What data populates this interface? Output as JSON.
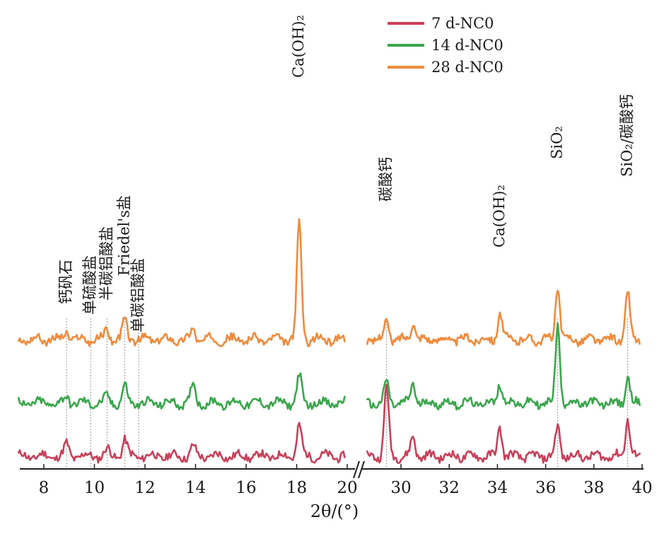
{
  "chart_data": {
    "type": "line",
    "title": "",
    "xlabel": "2θ/(°)",
    "ylabel": "",
    "xlim": [
      7,
      40
    ],
    "broken_axis": [
      20,
      28.6
    ],
    "x_ticks": [
      "8",
      "10",
      "12",
      "14",
      "16",
      "18",
      "20",
      "30",
      "32",
      "34",
      "36",
      "38",
      "40"
    ],
    "x_tick_values": [
      8,
      10,
      12,
      14,
      16,
      18,
      20,
      30,
      32,
      34,
      36,
      38,
      40
    ],
    "grid": false,
    "legend_position": "top-right",
    "series": [
      {
        "name": "7 d-NC0",
        "color": "#c8405a",
        "peaks": [
          [
            8.9,
            0.55
          ],
          [
            10.5,
            0.3
          ],
          [
            11.2,
            0.8
          ],
          [
            13.9,
            0.45
          ],
          [
            18.1,
            1.5
          ],
          [
            29.4,
            3.3
          ],
          [
            30.5,
            0.9
          ],
          [
            34.1,
            1.4
          ],
          [
            36.5,
            1.4
          ],
          [
            39.4,
            1.8
          ]
        ]
      },
      {
        "name": "14 d-NC0",
        "color": "#3aa64c",
        "peaks": [
          [
            8.9,
            0.3
          ],
          [
            10.5,
            0.3
          ],
          [
            11.2,
            0.8
          ],
          [
            13.9,
            0.9
          ],
          [
            18.1,
            1.3
          ],
          [
            29.4,
            1.0
          ],
          [
            30.5,
            1.0
          ],
          [
            34.1,
            1.0
          ],
          [
            36.5,
            3.7
          ],
          [
            39.4,
            1.2
          ]
        ]
      },
      {
        "name": "28 d-NC0",
        "color": "#f08a3c",
        "peaks": [
          [
            8.9,
            0.4
          ],
          [
            10.5,
            0.5
          ],
          [
            11.2,
            0.9
          ],
          [
            13.9,
            0.5
          ],
          [
            18.1,
            5.5
          ],
          [
            29.4,
            0.9
          ],
          [
            30.5,
            0.9
          ],
          [
            34.1,
            1.3
          ],
          [
            36.5,
            2.5
          ],
          [
            39.4,
            2.3
          ]
        ]
      }
    ],
    "guide_lines": [
      8.9,
      9.85,
      10.5,
      11.2,
      11.75,
      29.4,
      36.5,
      39.4
    ],
    "annotations": [
      {
        "text": "钙矾石",
        "x": 8.9
      },
      {
        "text": "单硫酸盐",
        "x": 9.85
      },
      {
        "text": "半碳铝酸盐",
        "x": 10.5
      },
      {
        "text": "Friedel's盐",
        "x": 11.2
      },
      {
        "text": "单碳铝酸盐",
        "x": 11.75
      },
      {
        "text": "Ca(OH)₂",
        "x": 18.1
      },
      {
        "text": "碳酸钙",
        "x": 29.4
      },
      {
        "text": "Ca(OH)₂",
        "x": 34.1
      },
      {
        "text": "SiO₂",
        "x": 36.5
      },
      {
        "text": "SiO₂/碳酸钙",
        "x": 39.4
      }
    ]
  }
}
